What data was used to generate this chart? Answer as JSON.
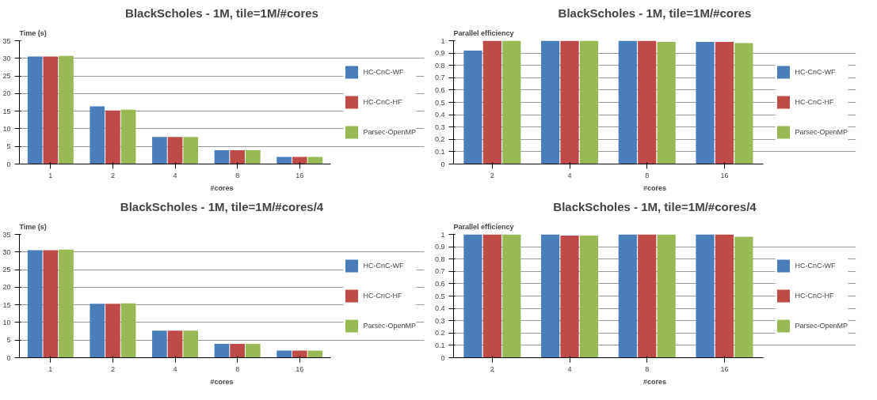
{
  "chart_data": [
    {
      "type": "bar",
      "title": "BlackScholes - 1M, tile=1M/#cores",
      "xlabel": "#cores",
      "ylabel": "Time (s)",
      "categories": [
        "1",
        "2",
        "4",
        "8",
        "16"
      ],
      "ylim": [
        0,
        35
      ],
      "yticks": [
        0,
        5,
        10,
        15,
        20,
        25,
        30,
        35
      ],
      "grid": "y",
      "legend": "right",
      "series": [
        {
          "name": "HC-CnC-WF",
          "color": "#4a7ebb",
          "values": [
            30.5,
            16.4,
            7.7,
            3.9,
            2.0
          ]
        },
        {
          "name": "HC-CnC-HF",
          "color": "#be4b48",
          "values": [
            30.5,
            15.2,
            7.7,
            3.9,
            2.0
          ]
        },
        {
          "name": "Parsec-OpenMP",
          "color": "#98b954",
          "values": [
            30.7,
            15.4,
            7.7,
            3.9,
            2.0
          ]
        }
      ]
    },
    {
      "type": "bar",
      "title": "BlackScholes - 1M, tile=1M/#cores",
      "xlabel": "#cores",
      "ylabel": "Parallel efficiency",
      "categories": [
        "2",
        "4",
        "8",
        "16"
      ],
      "ylim": [
        0,
        1
      ],
      "yticks": [
        0,
        0.1,
        0.2,
        0.3,
        0.4,
        0.5,
        0.6,
        0.7,
        0.8,
        0.9,
        1
      ],
      "grid": "y",
      "legend": "right",
      "series": [
        {
          "name": "HC-CnC-WF",
          "color": "#4a7ebb",
          "values": [
            0.92,
            1.0,
            1.0,
            0.99
          ]
        },
        {
          "name": "HC-CnC-HF",
          "color": "#be4b48",
          "values": [
            1.0,
            1.0,
            1.0,
            0.99
          ]
        },
        {
          "name": "Parsec-OpenMP",
          "color": "#98b954",
          "values": [
            1.0,
            1.0,
            0.99,
            0.98
          ]
        }
      ]
    },
    {
      "type": "bar",
      "title": "BlackScholes - 1M, tile=1M/#cores/4",
      "xlabel": "#cores",
      "ylabel": "Time (s)",
      "categories": [
        "1",
        "2",
        "4",
        "8",
        "16"
      ],
      "ylim": [
        0,
        35
      ],
      "yticks": [
        0,
        5,
        10,
        15,
        20,
        25,
        30,
        35
      ],
      "grid": "y",
      "legend": "right",
      "series": [
        {
          "name": "HC-CnC-WF",
          "color": "#4a7ebb",
          "values": [
            30.5,
            15.3,
            7.7,
            3.9,
            2.0
          ]
        },
        {
          "name": "HC-CnC-HF",
          "color": "#be4b48",
          "values": [
            30.5,
            15.3,
            7.7,
            3.9,
            2.0
          ]
        },
        {
          "name": "Parsec-OpenMP",
          "color": "#98b954",
          "values": [
            30.7,
            15.4,
            7.7,
            3.9,
            2.0
          ]
        }
      ]
    },
    {
      "type": "bar",
      "title": "BlackScholes - 1M, tile=1M/#cores/4",
      "xlabel": "#cores",
      "ylabel": "Parallel efficiency",
      "categories": [
        "2",
        "4",
        "8",
        "16"
      ],
      "ylim": [
        0,
        1
      ],
      "yticks": [
        0,
        0.1,
        0.2,
        0.3,
        0.4,
        0.5,
        0.6,
        0.7,
        0.8,
        0.9,
        1
      ],
      "grid": "y",
      "legend": "right",
      "series": [
        {
          "name": "HC-CnC-WF",
          "color": "#4a7ebb",
          "values": [
            1.0,
            1.0,
            1.0,
            1.0
          ]
        },
        {
          "name": "HC-CnC-HF",
          "color": "#be4b48",
          "values": [
            1.0,
            0.99,
            1.0,
            1.0
          ]
        },
        {
          "name": "Parsec-OpenMP",
          "color": "#98b954",
          "values": [
            1.0,
            0.99,
            1.0,
            0.98
          ]
        }
      ]
    }
  ]
}
